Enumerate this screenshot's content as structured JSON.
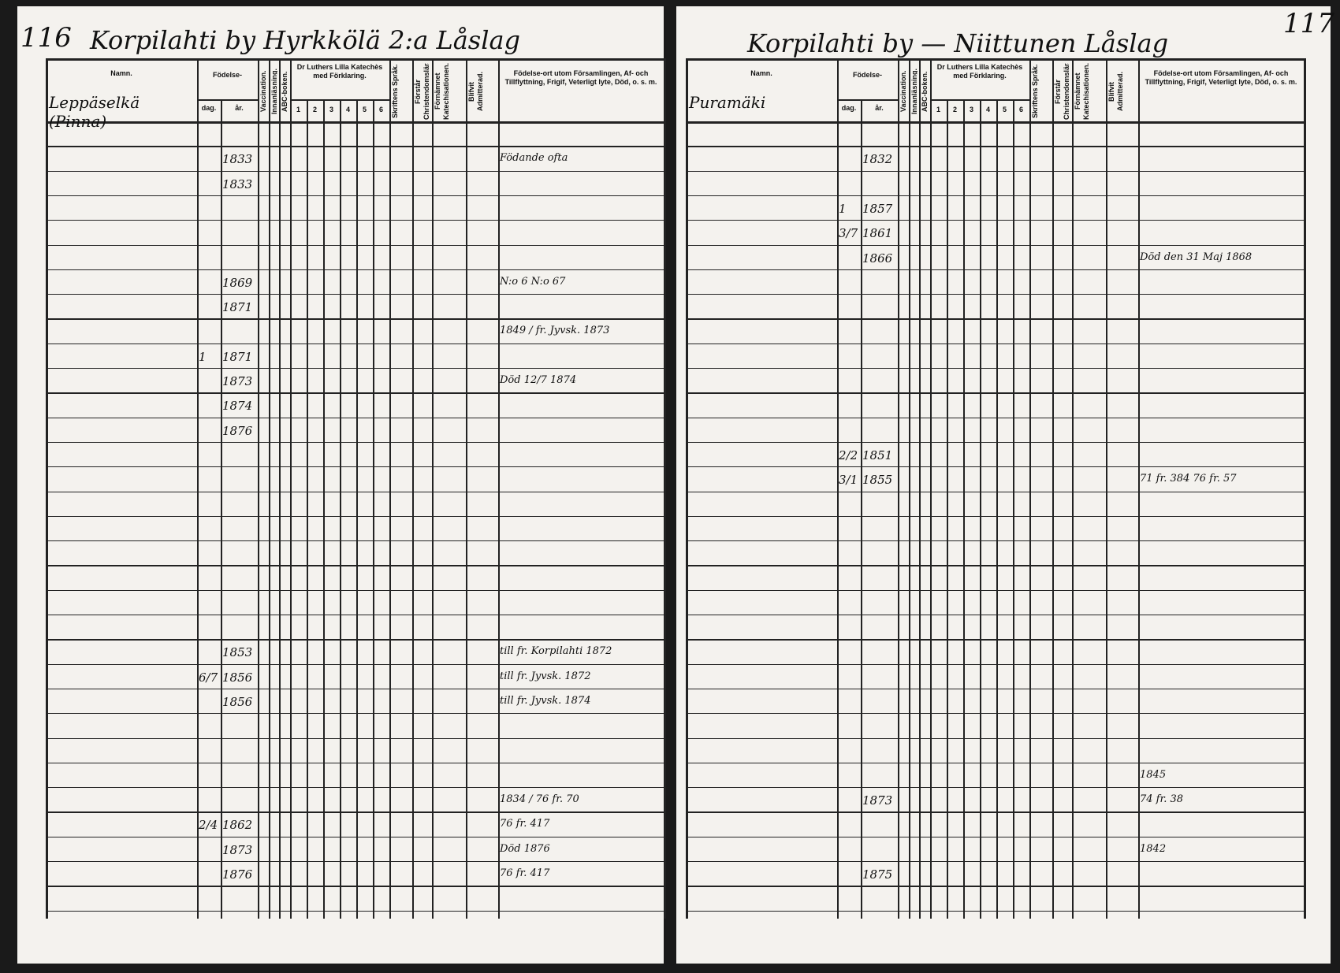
{
  "left_page": {
    "page_number": "116",
    "title": "Korpilahti by   Hyrkkölä 2:a Låslag",
    "subtitle": "Leppäselkä (Pinna)",
    "entries": [
      {
        "day": "",
        "year": "1833",
        "note": "Födande ofta"
      },
      {
        "day": "",
        "year": "1833",
        "note": ""
      },
      {
        "day": "",
        "year": "",
        "note": ""
      },
      {
        "day": "",
        "year": "1869",
        "note": "N:o 6 N:o 67"
      },
      {
        "day": "",
        "year": "1871",
        "note": ""
      },
      {
        "day": "",
        "year": "",
        "note": "1849 / fr. Jyvsk. 1873"
      },
      {
        "day": "1",
        "year": "1871",
        "note": ""
      },
      {
        "day": "",
        "year": "1873",
        "note": "Död 12/7 1874"
      },
      {
        "day": "",
        "year": "1874",
        "note": ""
      },
      {
        "day": "",
        "year": "1876",
        "note": ""
      },
      {
        "day": "",
        "year": "1853",
        "note": "till fr. Korpilahti 1872"
      },
      {
        "day": "6/7",
        "year": "1856",
        "note": "till fr. Jyvsk. 1872"
      },
      {
        "day": "",
        "year": "1856",
        "note": "till fr. Jyvsk. 1874"
      },
      {
        "day": "",
        "year": "",
        "note": "1834 / 76 fr. 70"
      },
      {
        "day": "2/4",
        "year": "1862",
        "note": "76 fr. 417"
      },
      {
        "day": "",
        "year": "1873",
        "note": "Död 1876"
      },
      {
        "day": "",
        "year": "1876",
        "note": "76 fr. 417"
      }
    ]
  },
  "right_page": {
    "page_number": "117",
    "title": "Korpilahti by — Niittunen Låslag",
    "subtitle": "Puramäki",
    "entries": [
      {
        "day": "",
        "year": "1832",
        "note": ""
      },
      {
        "day": "1",
        "year": "1857",
        "note": ""
      },
      {
        "day": "3/7",
        "year": "1861",
        "note": ""
      },
      {
        "day": "",
        "year": "1866",
        "note": "Död den 31 Maj 1868"
      },
      {
        "day": "2/2",
        "year": "1851",
        "note": ""
      },
      {
        "day": "3/1",
        "year": "1855",
        "note": "71 fr. 384 76 fr. 57"
      },
      {
        "day": "",
        "year": "",
        "note": "1845"
      },
      {
        "day": "",
        "year": "1873",
        "note": "74 fr. 38"
      },
      {
        "day": "",
        "year": "",
        "note": "1842"
      },
      {
        "day": "",
        "year": "1875",
        "note": ""
      }
    ]
  },
  "headers": {
    "name": "Namn.",
    "birth": "Födelse-",
    "day": "dag.",
    "year": "år.",
    "vaccination": "Vaccination.",
    "inoculation": "Innanläsning.",
    "abc": "ABC-boken.",
    "catechism": "Dr Luthers Lilla Katechès med Förklaring.",
    "cat_cols": [
      "1",
      "2",
      "3",
      "4",
      "5",
      "6"
    ],
    "scripture": "Skriftens Språk.",
    "confirmation_prep": "Förstår Christendomsläran.",
    "examined": "Förnämnet Katechisationen.",
    "communion": "Blifvit Admitterad.",
    "remarks": "Födelse-ort utom Församlingen, Af- och Tillflyttning, Frigif, Veterligt lyte, Död, o. s. m."
  }
}
